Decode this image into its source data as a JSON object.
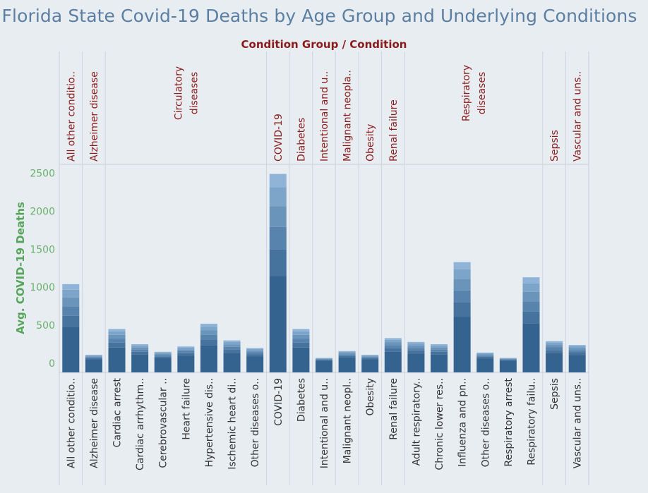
{
  "title": "Florida State Covid-19 Deaths by Age Group and Underlying Conditions",
  "header_label": "Condition Group  /  Condition",
  "colors": {
    "title": "#5b7fa3",
    "header": "#8a1b1b",
    "axis_label": "#56a55a",
    "tick": "#6ab06c",
    "bar_dark": "#34638f",
    "bar_light": "#8fb4d8",
    "background": "#e8edf2"
  },
  "chart_data": {
    "type": "bar",
    "stacked": true,
    "ylabel": "Avg. COVID-19 Deaths",
    "ylim": [
      0,
      2500
    ],
    "yticks": [
      0,
      500,
      1000,
      1500,
      2000,
      2500
    ],
    "grid": false,
    "groups": [
      {
        "label": "All other conditio..",
        "count": 1
      },
      {
        "label": "Alzheimer disease",
        "count": 1
      },
      {
        "label": "Circulatory diseases",
        "count": 7
      },
      {
        "label": "COVID-19",
        "count": 1
      },
      {
        "label": "Diabetes",
        "count": 1
      },
      {
        "label": "Intentional and u..",
        "count": 1
      },
      {
        "label": "Malignant neopla..",
        "count": 1
      },
      {
        "label": "Obesity",
        "count": 1
      },
      {
        "label": "Renal failure",
        "count": 1
      },
      {
        "label": "Respiratory diseases",
        "count": 6
      },
      {
        "label": "Sepsis",
        "count": 1
      },
      {
        "label": "Vascular and uns..",
        "count": 1
      }
    ],
    "categories": [
      "All other conditio..",
      "Alzheimer disease",
      "Cardiac arrest",
      "Cardiac arrhythm..",
      "Cerebrovascular ..",
      "Heart failure",
      "Hypertensive dis..",
      "Ischemic heart di..",
      "Other diseases o..",
      "COVID-19",
      "Diabetes",
      "Intentional and u..",
      "Malignant neopl..",
      "Obesity",
      "Renal failure",
      "Adult respiratory..",
      "Chronic lower res..",
      "Influenza and pn..",
      "Other diseases o..",
      "Respiratory arrest",
      "Respiratory failu..",
      "Sepsis",
      "Vascular and uns.."
    ],
    "values": [
      1040,
      110,
      450,
      250,
      150,
      220,
      520,
      300,
      200,
      2490,
      450,
      70,
      160,
      110,
      330,
      280,
      250,
      1330,
      140,
      70,
      1130,
      290,
      240
    ]
  }
}
